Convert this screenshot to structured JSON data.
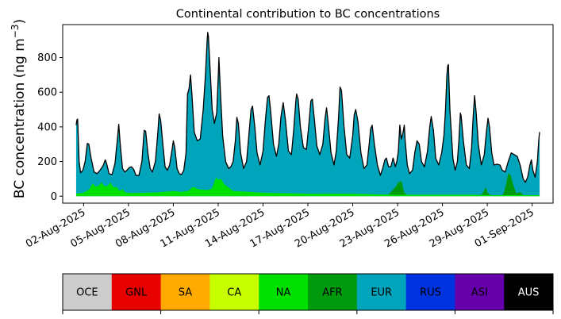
{
  "chart_data": {
    "type": "area",
    "title": "Continental contribution to BC concentrations",
    "ylabel": "BC concentration (ng m",
    "ylabel_superscript": "−3",
    "ylabel_suffix": ")",
    "xlabel": "",
    "ylim": [
      -40,
      990
    ],
    "yticks": [
      0,
      200,
      400,
      600,
      800
    ],
    "x_start_day": 0.5,
    "x_end_day": 31.5,
    "x_range": [
      -0.4,
      32.4
    ],
    "xticks": [
      {
        "day": 1,
        "label": "02-Aug-2025"
      },
      {
        "day": 4,
        "label": "05-Aug-2025"
      },
      {
        "day": 7,
        "label": "08-Aug-2025"
      },
      {
        "day": 10,
        "label": "11-Aug-2025"
      },
      {
        "day": 13,
        "label": "14-Aug-2025"
      },
      {
        "day": 16,
        "label": "17-Aug-2025"
      },
      {
        "day": 19,
        "label": "20-Aug-2025"
      },
      {
        "day": 22,
        "label": "23-Aug-2025"
      },
      {
        "day": 25,
        "label": "26-Aug-2025"
      },
      {
        "day": 28,
        "label": "29-Aug-2025"
      },
      {
        "day": 31,
        "label": "01-Sep-2025"
      }
    ],
    "total_series": {
      "name": "Total",
      "color": "#000000",
      "points": [
        [
          0.5,
          410
        ],
        [
          0.55,
          440
        ],
        [
          0.6,
          445
        ],
        [
          0.7,
          200
        ],
        [
          0.8,
          135
        ],
        [
          0.95,
          150
        ],
        [
          1.1,
          200
        ],
        [
          1.25,
          305
        ],
        [
          1.35,
          300
        ],
        [
          1.5,
          220
        ],
        [
          1.7,
          140
        ],
        [
          1.9,
          130
        ],
        [
          2.1,
          150
        ],
        [
          2.3,
          175
        ],
        [
          2.45,
          210
        ],
        [
          2.55,
          185
        ],
        [
          2.7,
          130
        ],
        [
          2.9,
          125
        ],
        [
          3.1,
          190
        ],
        [
          3.25,
          320
        ],
        [
          3.35,
          415
        ],
        [
          3.45,
          300
        ],
        [
          3.6,
          160
        ],
        [
          3.75,
          140
        ],
        [
          3.9,
          150
        ],
        [
          4.05,
          165
        ],
        [
          4.2,
          170
        ],
        [
          4.35,
          155
        ],
        [
          4.5,
          120
        ],
        [
          4.7,
          120
        ],
        [
          4.9,
          200
        ],
        [
          5.05,
          380
        ],
        [
          5.15,
          375
        ],
        [
          5.3,
          250
        ],
        [
          5.45,
          160
        ],
        [
          5.6,
          140
        ],
        [
          5.8,
          200
        ],
        [
          5.95,
          350
        ],
        [
          6.05,
          475
        ],
        [
          6.15,
          440
        ],
        [
          6.3,
          300
        ],
        [
          6.45,
          170
        ],
        [
          6.6,
          150
        ],
        [
          6.75,
          180
        ],
        [
          6.9,
          260
        ],
        [
          7.0,
          320
        ],
        [
          7.1,
          280
        ],
        [
          7.25,
          160
        ],
        [
          7.4,
          130
        ],
        [
          7.55,
          125
        ],
        [
          7.7,
          150
        ],
        [
          7.85,
          250
        ],
        [
          7.95,
          590
        ],
        [
          8.05,
          620
        ],
        [
          8.15,
          700
        ],
        [
          8.25,
          580
        ],
        [
          8.4,
          370
        ],
        [
          8.6,
          320
        ],
        [
          8.8,
          330
        ],
        [
          9.0,
          500
        ],
        [
          9.15,
          700
        ],
        [
          9.25,
          880
        ],
        [
          9.3,
          945
        ],
        [
          9.35,
          920
        ],
        [
          9.45,
          750
        ],
        [
          9.6,
          500
        ],
        [
          9.75,
          420
        ],
        [
          9.9,
          480
        ],
        [
          10.0,
          680
        ],
        [
          10.05,
          800
        ],
        [
          10.15,
          600
        ],
        [
          10.3,
          350
        ],
        [
          10.5,
          200
        ],
        [
          10.7,
          160
        ],
        [
          10.85,
          170
        ],
        [
          11.0,
          200
        ],
        [
          11.15,
          320
        ],
        [
          11.25,
          455
        ],
        [
          11.35,
          420
        ],
        [
          11.5,
          250
        ],
        [
          11.7,
          160
        ],
        [
          11.9,
          200
        ],
        [
          12.05,
          350
        ],
        [
          12.2,
          500
        ],
        [
          12.3,
          520
        ],
        [
          12.45,
          400
        ],
        [
          12.6,
          250
        ],
        [
          12.8,
          180
        ],
        [
          13.0,
          260
        ],
        [
          13.15,
          430
        ],
        [
          13.3,
          570
        ],
        [
          13.4,
          580
        ],
        [
          13.5,
          500
        ],
        [
          13.7,
          300
        ],
        [
          13.9,
          230
        ],
        [
          14.05,
          300
        ],
        [
          14.2,
          460
        ],
        [
          14.35,
          540
        ],
        [
          14.5,
          440
        ],
        [
          14.7,
          260
        ],
        [
          14.9,
          240
        ],
        [
          15.05,
          380
        ],
        [
          15.2,
          555
        ],
        [
          15.25,
          590
        ],
        [
          15.35,
          560
        ],
        [
          15.5,
          400
        ],
        [
          15.7,
          280
        ],
        [
          15.9,
          270
        ],
        [
          16.05,
          400
        ],
        [
          16.2,
          550
        ],
        [
          16.3,
          560
        ],
        [
          16.45,
          430
        ],
        [
          16.6,
          290
        ],
        [
          16.8,
          240
        ],
        [
          17.0,
          300
        ],
        [
          17.15,
          450
        ],
        [
          17.25,
          510
        ],
        [
          17.35,
          430
        ],
        [
          17.55,
          250
        ],
        [
          17.75,
          180
        ],
        [
          17.9,
          260
        ],
        [
          18.05,
          450
        ],
        [
          18.15,
          630
        ],
        [
          18.25,
          610
        ],
        [
          18.4,
          420
        ],
        [
          18.6,
          240
        ],
        [
          18.8,
          220
        ],
        [
          19.0,
          350
        ],
        [
          19.1,
          470
        ],
        [
          19.2,
          500
        ],
        [
          19.35,
          430
        ],
        [
          19.55,
          250
        ],
        [
          19.75,
          160
        ],
        [
          19.95,
          180
        ],
        [
          20.1,
          300
        ],
        [
          20.2,
          390
        ],
        [
          20.3,
          410
        ],
        [
          20.45,
          300
        ],
        [
          20.65,
          180
        ],
        [
          20.85,
          120
        ],
        [
          21.0,
          160
        ],
        [
          21.15,
          210
        ],
        [
          21.25,
          220
        ],
        [
          21.4,
          170
        ],
        [
          21.55,
          170
        ],
        [
          21.7,
          220
        ],
        [
          21.85,
          170
        ],
        [
          21.95,
          200
        ],
        [
          22.05,
          260
        ],
        [
          22.15,
          410
        ],
        [
          22.25,
          330
        ],
        [
          22.35,
          360
        ],
        [
          22.45,
          410
        ],
        [
          22.5,
          330
        ],
        [
          22.65,
          180
        ],
        [
          22.8,
          130
        ],
        [
          23.0,
          150
        ],
        [
          23.15,
          250
        ],
        [
          23.3,
          320
        ],
        [
          23.45,
          300
        ],
        [
          23.6,
          200
        ],
        [
          23.8,
          170
        ],
        [
          24.0,
          260
        ],
        [
          24.15,
          400
        ],
        [
          24.25,
          460
        ],
        [
          24.4,
          380
        ],
        [
          24.55,
          220
        ],
        [
          24.75,
          180
        ],
        [
          24.95,
          250
        ],
        [
          25.1,
          350
        ],
        [
          25.2,
          490
        ],
        [
          25.3,
          700
        ],
        [
          25.35,
          750
        ],
        [
          25.4,
          760
        ],
        [
          25.5,
          500
        ],
        [
          25.7,
          220
        ],
        [
          25.85,
          150
        ],
        [
          26.0,
          200
        ],
        [
          26.1,
          320
        ],
        [
          26.2,
          480
        ],
        [
          26.25,
          465
        ],
        [
          26.4,
          320
        ],
        [
          26.6,
          180
        ],
        [
          26.8,
          160
        ],
        [
          26.95,
          280
        ],
        [
          27.05,
          450
        ],
        [
          27.15,
          580
        ],
        [
          27.25,
          490
        ],
        [
          27.4,
          300
        ],
        [
          27.6,
          180
        ],
        [
          27.8,
          240
        ],
        [
          27.95,
          380
        ],
        [
          28.05,
          450
        ],
        [
          28.15,
          400
        ],
        [
          28.3,
          250
        ],
        [
          28.45,
          180
        ],
        [
          28.65,
          185
        ],
        [
          28.85,
          180
        ],
        [
          29.0,
          150
        ],
        [
          29.2,
          140
        ],
        [
          29.4,
          200
        ],
        [
          29.6,
          250
        ],
        [
          29.8,
          240
        ],
        [
          30.0,
          230
        ],
        [
          30.2,
          180
        ],
        [
          30.4,
          100
        ],
        [
          30.55,
          80
        ],
        [
          30.7,
          110
        ],
        [
          30.85,
          180
        ],
        [
          30.95,
          210
        ],
        [
          31.05,
          150
        ],
        [
          31.2,
          110
        ],
        [
          31.35,
          200
        ],
        [
          31.45,
          330
        ],
        [
          31.5,
          370
        ]
      ]
    },
    "series": [
      {
        "name": "NA",
        "color": "#00e000",
        "points": [
          [
            0.5,
            15
          ],
          [
            1.0,
            20
          ],
          [
            1.4,
            40
          ],
          [
            1.6,
            75
          ],
          [
            1.8,
            55
          ],
          [
            2.0,
            60
          ],
          [
            2.2,
            80
          ],
          [
            2.4,
            55
          ],
          [
            2.6,
            60
          ],
          [
            2.8,
            80
          ],
          [
            3.0,
            50
          ],
          [
            3.2,
            55
          ],
          [
            3.4,
            30
          ],
          [
            3.6,
            40
          ],
          [
            3.8,
            20
          ],
          [
            4.2,
            18
          ],
          [
            5.0,
            20
          ],
          [
            6.0,
            22
          ],
          [
            7.0,
            30
          ],
          [
            7.5,
            25
          ],
          [
            8.0,
            30
          ],
          [
            8.3,
            55
          ],
          [
            8.7,
            40
          ],
          [
            9.3,
            35
          ],
          [
            9.6,
            45
          ],
          [
            9.85,
            110
          ],
          [
            10.0,
            95
          ],
          [
            10.2,
            100
          ],
          [
            10.4,
            70
          ],
          [
            10.7,
            50
          ],
          [
            11.0,
            30
          ],
          [
            12.0,
            25
          ],
          [
            13.0,
            20
          ],
          [
            14.0,
            18
          ],
          [
            15.0,
            16
          ],
          [
            16.0,
            15
          ],
          [
            17.0,
            14
          ],
          [
            18.0,
            15
          ],
          [
            19.0,
            14
          ],
          [
            20.0,
            12
          ],
          [
            21.0,
            10
          ],
          [
            22.0,
            8
          ],
          [
            23.0,
            8
          ],
          [
            24.0,
            8
          ],
          [
            25.0,
            8
          ],
          [
            26.0,
            8
          ],
          [
            27.0,
            8
          ],
          [
            28.0,
            6
          ],
          [
            29.0,
            6
          ],
          [
            30.0,
            6
          ],
          [
            31.0,
            6
          ],
          [
            31.5,
            6
          ]
        ]
      },
      {
        "name": "AFR",
        "color": "#009a0e",
        "points": [
          [
            0.5,
            0
          ],
          [
            21.4,
            0
          ],
          [
            21.6,
            20
          ],
          [
            21.85,
            45
          ],
          [
            22.0,
            60
          ],
          [
            22.05,
            80
          ],
          [
            22.1,
            65
          ],
          [
            22.2,
            80
          ],
          [
            22.3,
            75
          ],
          [
            22.4,
            20
          ],
          [
            22.6,
            0
          ],
          [
            27.6,
            0
          ],
          [
            27.75,
            20
          ],
          [
            27.9,
            50
          ],
          [
            28.0,
            15
          ],
          [
            28.2,
            0
          ],
          [
            29.05,
            0
          ],
          [
            29.25,
            60
          ],
          [
            29.4,
            125
          ],
          [
            29.55,
            120
          ],
          [
            29.75,
            55
          ],
          [
            29.95,
            10
          ],
          [
            30.2,
            20
          ],
          [
            30.4,
            0
          ],
          [
            31.5,
            0
          ]
        ]
      }
    ],
    "series_order": [
      "EUR",
      "NA",
      "AFR"
    ],
    "fill_color": "#00a5bb",
    "colorbar": [
      {
        "label": "OCE",
        "color": "#cccccc",
        "text_color": "#000000"
      },
      {
        "label": "GNL",
        "color": "#e60000",
        "text_color": "#000000"
      },
      {
        "label": "SA",
        "color": "#ffaa00",
        "text_color": "#000000"
      },
      {
        "label": "CA",
        "color": "#c8ff00",
        "text_color": "#000000"
      },
      {
        "label": "NA",
        "color": "#00e000",
        "text_color": "#000000"
      },
      {
        "label": "AFR",
        "color": "#009a0e",
        "text_color": "#000000"
      },
      {
        "label": "EUR",
        "color": "#00a5bb",
        "text_color": "#000000"
      },
      {
        "label": "RUS",
        "color": "#0033e0",
        "text_color": "#000000"
      },
      {
        "label": "ASI",
        "color": "#6600aa",
        "text_color": "#000000"
      },
      {
        "label": "AUS",
        "color": "#000000",
        "text_color": "#ffffff"
      }
    ]
  }
}
